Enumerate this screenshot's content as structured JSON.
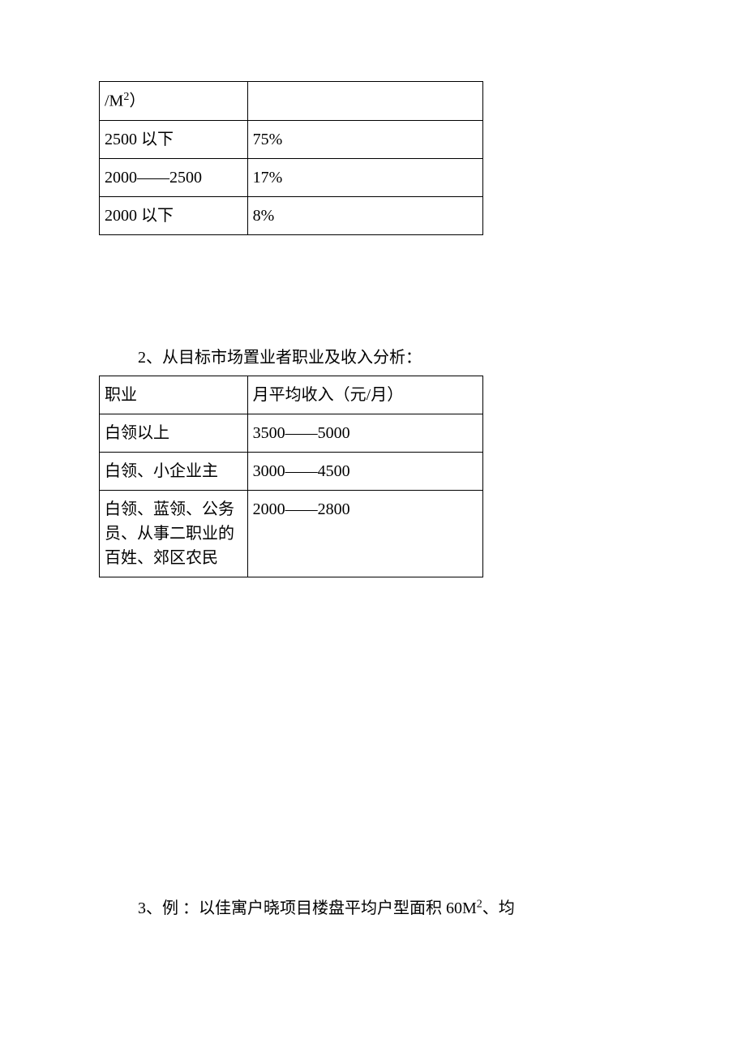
{
  "table1": {
    "col1_width": 183,
    "col2_width": 291,
    "border_color": "#000000",
    "font_size": 20,
    "rows": [
      {
        "c1_pre": "/M",
        "c1_sup": "2",
        "c1_post": "）",
        "c2": ""
      },
      {
        "c1": "2500 以下",
        "c2": "75%"
      },
      {
        "c1": "2000——2500",
        "c2": "17%"
      },
      {
        "c1": "2000 以下",
        "c2": "8%"
      }
    ]
  },
  "heading2": "2、从目标市场置业者职业及收入分析：",
  "table2": {
    "col1_width": 183,
    "col2_width": 291,
    "border_color": "#000000",
    "font_size": 20,
    "rows": [
      {
        "c1": "职业",
        "c2": "月平均收入（元/月）"
      },
      {
        "c1": "白领以上",
        "c2": "3500——5000"
      },
      {
        "c1": "白领、小企业主",
        "c2": "3000——4500"
      },
      {
        "c1": "白领、蓝领、公务员、从事二职业的百姓、郊区农民",
        "c2": "2000——2800"
      }
    ]
  },
  "para3_pre": "3、例 ：以佳寓户晓项目楼盘平均户型面积 60M",
  "para3_sup": "2",
  "para3_post": "、均"
}
